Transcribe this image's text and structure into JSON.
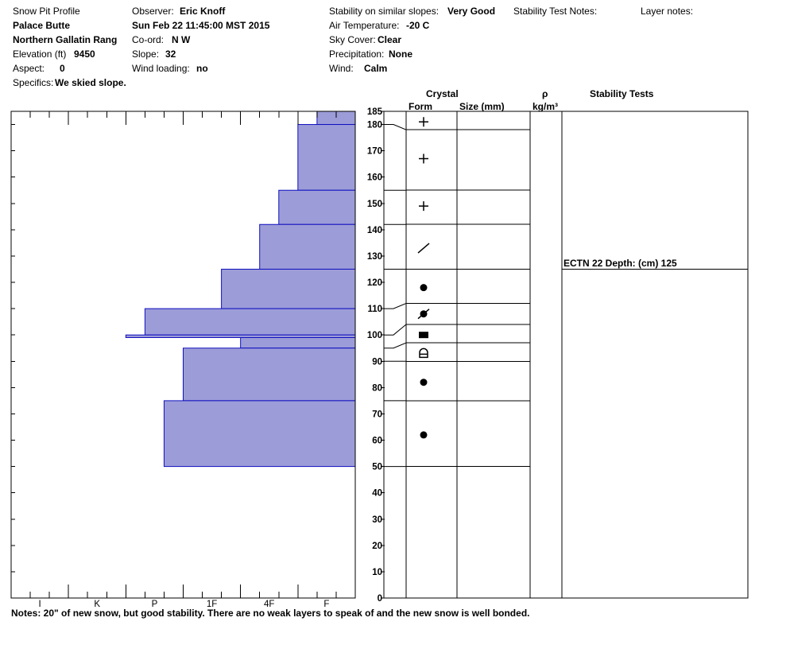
{
  "header": {
    "profile_label": "Snow Pit Profile",
    "location": "Palace Butte",
    "range": "Northern Gallatin Rang",
    "elevation_label": "Elevation (ft)",
    "elevation_value": "9450",
    "aspect_label": "Aspect:",
    "aspect_value": "0",
    "specifics_label": "Specifics:",
    "specifics_value": "We skied slope.",
    "observer_label": "Observer:",
    "observer_value": "Eric Knoff",
    "datetime": "Sun Feb 22 11:45:00 MST 2015",
    "coord_label": "Co-ord:",
    "coord_value": "N  W",
    "slope_label": "Slope:",
    "slope_value": "32",
    "wind_loading_label": "Wind loading:",
    "wind_loading_value": "no",
    "stability_label": "Stability on similar slopes:",
    "stability_value": "Very Good",
    "air_temp_label": "Air Temperature:",
    "air_temp_value": "-20 C",
    "sky_label": "Sky Cover:",
    "sky_value": "Clear",
    "precip_label": "Precipitation:",
    "precip_value": "None",
    "wind_label": "Wind:",
    "wind_value": "Calm",
    "stability_notes_label": "Stability Test Notes:",
    "layer_notes_label": "Layer notes:"
  },
  "columns": {
    "crystal": "Crystal",
    "form": "Form",
    "size": "Size (mm)",
    "rho": "ρ",
    "density_unit": "kg/m³",
    "stability_tests": "Stability Tests"
  },
  "notes": "Notes:  20\" of new snow, but good stability. There are no weak layers to speak of and the new snow is well bonded.",
  "stability_test": {
    "text": "ECTN 22   Depth: (cm) 125",
    "depth": 125
  },
  "colors": {
    "bar_fill": "#9c9cd8",
    "bar_stroke": "#1010c0"
  },
  "chart_data": {
    "type": "bar",
    "orientation": "horizontal",
    "ylim": [
      0,
      185
    ],
    "y_ticks": [
      0,
      10,
      20,
      30,
      40,
      50,
      60,
      70,
      80,
      90,
      100,
      110,
      120,
      130,
      140,
      150,
      160,
      170,
      180,
      185
    ],
    "hardness_ticks": [
      "I",
      "K",
      "P",
      "1F",
      "4F",
      "F"
    ],
    "hardness_scale_max": 18,
    "layers": [
      {
        "top": 185,
        "bottom": 180,
        "hardness": 2
      },
      {
        "top": 180,
        "bottom": 155,
        "hardness": 3
      },
      {
        "top": 155,
        "bottom": 142,
        "hardness": 4
      },
      {
        "top": 142,
        "bottom": 125,
        "hardness": 5
      },
      {
        "top": 125,
        "bottom": 110,
        "hardness": 7
      },
      {
        "top": 110,
        "bottom": 100,
        "hardness": 11
      },
      {
        "top": 100,
        "bottom": 99,
        "hardness": 12
      },
      {
        "top": 99,
        "bottom": 95,
        "hardness": 6
      },
      {
        "top": 95,
        "bottom": 75,
        "hardness": 9
      },
      {
        "top": 75,
        "bottom": 50,
        "hardness": 10
      }
    ],
    "crystal_layers": [
      {
        "top": 185,
        "bottom": 178,
        "form": "plus",
        "symbol_at": 181
      },
      {
        "top": 178,
        "bottom": 155,
        "form": "plus",
        "symbol_at": 167
      },
      {
        "top": 155,
        "bottom": 142,
        "form": "plus",
        "symbol_at": 149
      },
      {
        "top": 142,
        "bottom": 125,
        "form": "slash",
        "symbol_at": 133
      },
      {
        "top": 125,
        "bottom": 112,
        "form": "dot",
        "symbol_at": 118
      },
      {
        "top": 112,
        "bottom": 104,
        "form": "dot-slash",
        "symbol_at": 108
      },
      {
        "top": 104,
        "bottom": 97,
        "form": "square",
        "symbol_at": 100
      },
      {
        "top": 97,
        "bottom": 90,
        "form": "cup",
        "symbol_at": 93
      },
      {
        "top": 90,
        "bottom": 75,
        "form": "dot",
        "symbol_at": 82
      },
      {
        "top": 75,
        "bottom": 50,
        "form": "dot",
        "symbol_at": 62
      }
    ]
  }
}
